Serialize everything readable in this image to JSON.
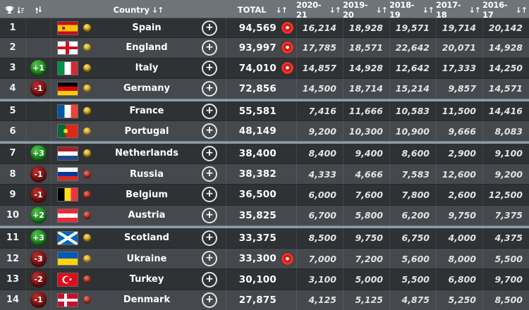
{
  "header": {
    "country_label": "Country",
    "total_label": "TOTAL",
    "year_labels": [
      "2020-21",
      "2019-20",
      "2018-19",
      "2017-18",
      "2016-17"
    ],
    "sort_glyph": "↓↑",
    "icons": {
      "rank_sort": "trophy-sort-icon",
      "movement_sort": "movement-sort-icon"
    }
  },
  "colors": {
    "header_bg": "#6e747a",
    "row_dark": "#2f3234",
    "row_light": "#45484c",
    "zone_divider": "#8d9aa6",
    "badge_up": "#1d8a1d",
    "badge_down": "#7e1212",
    "dot_yellow": "#d3a71f",
    "dot_red": "#b62e24",
    "live_red": "#ef3226"
  },
  "expand_button_label": "+",
  "zone_breaks_after_ranks": [
    4,
    6,
    10
  ],
  "rows": [
    {
      "rank": 1,
      "movement": null,
      "flag": "es",
      "country": "Spain",
      "dot": "yellow",
      "total": "94,569",
      "live": true,
      "years": [
        "16,214",
        "18,928",
        "19,571",
        "19,714",
        "20,142"
      ]
    },
    {
      "rank": 2,
      "movement": null,
      "flag": "en",
      "country": "England",
      "dot": "yellow",
      "total": "93,997",
      "live": true,
      "years": [
        "17,785",
        "18,571",
        "22,642",
        "20,071",
        "14,928"
      ]
    },
    {
      "rank": 3,
      "movement": "+1",
      "flag": "it",
      "country": "Italy",
      "dot": "yellow",
      "total": "74,010",
      "live": true,
      "years": [
        "14,857",
        "14,928",
        "12,642",
        "17,333",
        "14,250"
      ]
    },
    {
      "rank": 4,
      "movement": "-1",
      "flag": "de",
      "country": "Germany",
      "dot": "yellow",
      "total": "72,856",
      "live": false,
      "years": [
        "14,500",
        "18,714",
        "15,214",
        "9,857",
        "14,571"
      ]
    },
    {
      "rank": 5,
      "movement": null,
      "flag": "fr",
      "country": "France",
      "dot": "yellow",
      "total": "55,581",
      "live": false,
      "years": [
        "7,416",
        "11,666",
        "10,583",
        "11,500",
        "14,416"
      ]
    },
    {
      "rank": 6,
      "movement": null,
      "flag": "pt",
      "country": "Portugal",
      "dot": "yellow",
      "total": "48,149",
      "live": false,
      "years": [
        "9,200",
        "10,300",
        "10,900",
        "9,666",
        "8,083"
      ]
    },
    {
      "rank": 7,
      "movement": "+3",
      "flag": "nl",
      "country": "Netherlands",
      "dot": "yellow",
      "total": "38,400",
      "live": false,
      "years": [
        "8,400",
        "9,400",
        "8,600",
        "2,900",
        "9,100"
      ]
    },
    {
      "rank": 8,
      "movement": "-1",
      "flag": "ru",
      "country": "Russia",
      "dot": "red",
      "total": "38,382",
      "live": false,
      "years": [
        "4,333",
        "4,666",
        "7,583",
        "12,600",
        "9,200"
      ]
    },
    {
      "rank": 9,
      "movement": "-1",
      "flag": "be",
      "country": "Belgium",
      "dot": "red",
      "total": "36,500",
      "live": false,
      "years": [
        "6,000",
        "7,600",
        "7,800",
        "2,600",
        "12,500"
      ]
    },
    {
      "rank": 10,
      "movement": "+2",
      "flag": "at",
      "country": "Austria",
      "dot": "red",
      "total": "35,825",
      "live": false,
      "years": [
        "6,700",
        "5,800",
        "6,200",
        "9,750",
        "7,375"
      ]
    },
    {
      "rank": 11,
      "movement": "+3",
      "flag": "sc",
      "country": "Scotland",
      "dot": "yellow",
      "total": "33,375",
      "live": false,
      "years": [
        "8,500",
        "9,750",
        "6,750",
        "4,000",
        "4,375"
      ]
    },
    {
      "rank": 12,
      "movement": "-3",
      "flag": "ua",
      "country": "Ukraine",
      "dot": "yellow",
      "total": "33,300",
      "live": true,
      "years": [
        "7,000",
        "7,200",
        "5,600",
        "8,000",
        "5,500"
      ]
    },
    {
      "rank": 13,
      "movement": "-2",
      "flag": "tr",
      "country": "Turkey",
      "dot": "red",
      "total": "30,100",
      "live": false,
      "years": [
        "3,100",
        "5,000",
        "5,500",
        "6,800",
        "9,700"
      ]
    },
    {
      "rank": 14,
      "movement": "-1",
      "flag": "dk",
      "country": "Denmark",
      "dot": "red",
      "total": "27,875",
      "live": false,
      "years": [
        "4,125",
        "5,125",
        "4,875",
        "5,250",
        "8,500"
      ]
    }
  ]
}
